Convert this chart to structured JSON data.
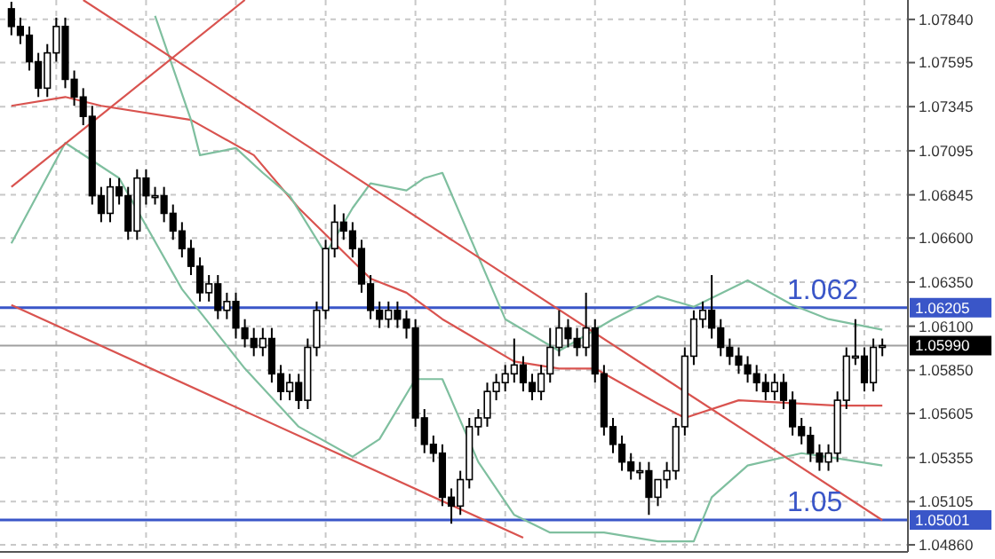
{
  "chart_data": {
    "type": "candlestick",
    "categories": [
      null,
      null,
      null,
      null,
      null,
      null,
      null,
      null,
      null,
      null,
      null,
      null,
      null,
      null,
      null,
      null,
      null,
      null,
      null,
      null,
      null,
      null,
      null,
      null,
      null,
      null,
      null,
      null,
      null,
      null,
      null,
      null,
      null,
      null,
      null,
      null,
      null,
      null,
      null,
      null,
      null,
      null,
      null,
      null,
      null,
      null,
      null,
      null,
      null,
      null,
      null,
      null,
      null,
      null,
      null,
      null,
      null,
      null,
      null,
      null,
      null,
      null,
      null,
      null,
      null,
      null,
      null,
      null,
      null,
      null,
      null,
      null,
      null,
      null,
      null,
      null,
      null,
      null,
      null,
      null,
      null,
      null,
      null,
      null,
      null,
      null,
      null,
      null,
      null,
      null,
      null,
      null,
      null,
      null,
      null,
      null,
      null,
      null
    ],
    "color": "#000000",
    "ohlc": [
      [
        1.079,
        1.0794,
        1.0775,
        1.078
      ],
      [
        1.078,
        1.0785,
        1.077,
        1.0775
      ],
      [
        1.0775,
        1.078,
        1.0755,
        1.076
      ],
      [
        1.076,
        1.0765,
        1.074,
        1.0745
      ],
      [
        1.0745,
        1.077,
        1.074,
        1.0765
      ],
      [
        1.0765,
        1.0785,
        1.076,
        1.078
      ],
      [
        1.078,
        1.0785,
        1.0745,
        1.075
      ],
      [
        1.075,
        1.0755,
        1.0735,
        1.074
      ],
      [
        1.074,
        1.0745,
        1.0724,
        1.0729
      ],
      [
        1.0729,
        1.0735,
        1.0679,
        1.0684
      ],
      [
        1.0684,
        1.0689,
        1.0669,
        1.0674
      ],
      [
        1.0674,
        1.0694,
        1.0669,
        1.0689
      ],
      [
        1.0689,
        1.0694,
        1.0679,
        1.0684
      ],
      [
        1.0684,
        1.0689,
        1.0659,
        1.0664
      ],
      [
        1.0664,
        1.0699,
        1.0659,
        1.0694
      ],
      [
        1.0694,
        1.0699,
        1.0679,
        1.0684
      ],
      [
        1.0684,
        1.0689,
        1.0679,
        1.0684
      ],
      [
        1.0684,
        1.0689,
        1.0669,
        1.0674
      ],
      [
        1.0674,
        1.0679,
        1.0659,
        1.0664
      ],
      [
        1.0664,
        1.0669,
        1.0649,
        1.0654
      ],
      [
        1.0654,
        1.0659,
        1.0639,
        1.0644
      ],
      [
        1.0644,
        1.0649,
        1.0624,
        1.0629
      ],
      [
        1.0629,
        1.0639,
        1.0624,
        1.0634
      ],
      [
        1.0634,
        1.0639,
        1.0614,
        1.0619
      ],
      [
        1.0619,
        1.0629,
        1.0614,
        1.0624
      ],
      [
        1.0624,
        1.0629,
        1.0603,
        1.0609
      ],
      [
        1.0609,
        1.0614,
        1.0598,
        1.0603
      ],
      [
        1.0603,
        1.0609,
        1.0593,
        1.0598
      ],
      [
        1.0598,
        1.0609,
        1.0593,
        1.0603
      ],
      [
        1.0603,
        1.0609,
        1.0578,
        1.0583
      ],
      [
        1.0583,
        1.0588,
        1.0568,
        1.0573
      ],
      [
        1.0573,
        1.0583,
        1.0568,
        1.0578
      ],
      [
        1.0578,
        1.0583,
        1.0563,
        1.0568
      ],
      [
        1.0568,
        1.0603,
        1.0563,
        1.0598
      ],
      [
        1.0598,
        1.0624,
        1.0593,
        1.0619
      ],
      [
        1.0619,
        1.0659,
        1.0614,
        1.0654
      ],
      [
        1.0654,
        1.0679,
        1.0649,
        1.0669
      ],
      [
        1.0669,
        1.0674,
        1.0659,
        1.0664
      ],
      [
        1.0664,
        1.0669,
        1.0649,
        1.0654
      ],
      [
        1.0654,
        1.0659,
        1.0629,
        1.0634
      ],
      [
        1.0634,
        1.0639,
        1.0614,
        1.0619
      ],
      [
        1.0619,
        1.0624,
        1.0609,
        1.0614
      ],
      [
        1.0614,
        1.0624,
        1.0609,
        1.0619
      ],
      [
        1.0619,
        1.0624,
        1.0609,
        1.0614
      ],
      [
        1.0614,
        1.0619,
        1.0603,
        1.0609
      ],
      [
        1.0609,
        1.0614,
        1.0553,
        1.0558
      ],
      [
        1.0558,
        1.0563,
        1.0538,
        1.0543
      ],
      [
        1.0543,
        1.0548,
        1.0533,
        1.0538
      ],
      [
        1.0538,
        1.0543,
        1.0508,
        1.0513
      ],
      [
        1.0513,
        1.0518,
        1.0498,
        1.0508
      ],
      [
        1.0508,
        1.0528,
        1.0503,
        1.0523
      ],
      [
        1.0523,
        1.0558,
        1.0518,
        1.0553
      ],
      [
        1.0553,
        1.0563,
        1.0548,
        1.0558
      ],
      [
        1.0558,
        1.0578,
        1.0553,
        1.0573
      ],
      [
        1.0573,
        1.0583,
        1.0568,
        1.0578
      ],
      [
        1.0578,
        1.0588,
        1.0573,
        1.0583
      ],
      [
        1.0583,
        1.0603,
        1.0578,
        1.0588
      ],
      [
        1.0588,
        1.0593,
        1.0573,
        1.0578
      ],
      [
        1.0578,
        1.0583,
        1.0568,
        1.0573
      ],
      [
        1.0573,
        1.0588,
        1.0568,
        1.0583
      ],
      [
        1.0583,
        1.0609,
        1.0578,
        1.0598
      ],
      [
        1.0598,
        1.0619,
        1.0593,
        1.0609
      ],
      [
        1.0609,
        1.0614,
        1.0598,
        1.0603
      ],
      [
        1.0603,
        1.0609,
        1.0593,
        1.0598
      ],
      [
        1.0598,
        1.0629,
        1.0593,
        1.0609
      ],
      [
        1.0609,
        1.0614,
        1.0578,
        1.0583
      ],
      [
        1.0583,
        1.0588,
        1.0548,
        1.0553
      ],
      [
        1.0553,
        1.0558,
        1.0538,
        1.0543
      ],
      [
        1.0543,
        1.0548,
        1.0528,
        1.0533
      ],
      [
        1.0533,
        1.0538,
        1.0523,
        1.0528
      ],
      [
        1.0528,
        1.0533,
        1.0523,
        1.0528
      ],
      [
        1.0528,
        1.0533,
        1.0503,
        1.0513
      ],
      [
        1.0513,
        1.0523,
        1.0508,
        1.0523
      ],
      [
        1.0523,
        1.0533,
        1.0518,
        1.0528
      ],
      [
        1.0528,
        1.0558,
        1.0523,
        1.0553
      ],
      [
        1.0553,
        1.0598,
        1.0548,
        1.0593
      ],
      [
        1.0593,
        1.0619,
        1.0588,
        1.0614
      ],
      [
        1.0614,
        1.0624,
        1.0609,
        1.0619
      ],
      [
        1.0619,
        1.0639,
        1.0603,
        1.0609
      ],
      [
        1.0609,
        1.0614,
        1.0593,
        1.0598
      ],
      [
        1.0598,
        1.0603,
        1.0588,
        1.0593
      ],
      [
        1.0593,
        1.0598,
        1.0583,
        1.0588
      ],
      [
        1.0588,
        1.0593,
        1.0578,
        1.0583
      ],
      [
        1.0583,
        1.0588,
        1.0573,
        1.0578
      ],
      [
        1.0578,
        1.0583,
        1.0568,
        1.0573
      ],
      [
        1.0573,
        1.0583,
        1.0568,
        1.0578
      ],
      [
        1.0578,
        1.0583,
        1.0563,
        1.0568
      ],
      [
        1.0568,
        1.0573,
        1.0548,
        1.0553
      ],
      [
        1.0553,
        1.0558,
        1.0543,
        1.0548
      ],
      [
        1.0548,
        1.0553,
        1.0533,
        1.0538
      ],
      [
        1.0538,
        1.0543,
        1.0528,
        1.0533
      ],
      [
        1.0533,
        1.0543,
        1.0528,
        1.0538
      ],
      [
        1.0538,
        1.0573,
        1.0533,
        1.0568
      ],
      [
        1.0568,
        1.0598,
        1.0563,
        1.0593
      ],
      [
        1.0593,
        1.0614,
        1.0588,
        1.0593
      ],
      [
        1.0593,
        1.0598,
        1.0573,
        1.0578
      ],
      [
        1.0578,
        1.0603,
        1.0573,
        1.0598
      ],
      [
        1.0598,
        1.0603,
        1.0593,
        1.0599
      ]
    ],
    "series": [
      {
        "type": "line",
        "color": "#d9534f",
        "values": [
          1.0735,
          null,
          null,
          null,
          null,
          null,
          1.074,
          null,
          null,
          null,
          1.0735,
          null,
          null,
          null,
          null,
          null,
          null,
          null,
          null,
          null,
          1.0727,
          null,
          null,
          null,
          null,
          null,
          null,
          1.0707,
          null,
          null,
          null,
          null,
          1.0677,
          null,
          null,
          null,
          null,
          null,
          null,
          null,
          1.0637,
          null,
          null,
          null,
          1.0629,
          null,
          null,
          null,
          1.0614,
          null,
          null,
          null,
          null,
          null,
          null,
          null,
          1.059,
          null,
          null,
          null,
          null,
          1.0586,
          null,
          null,
          null,
          1.0586,
          null,
          null,
          null,
          null,
          null,
          null,
          1.0566,
          null,
          null,
          1.0558,
          null,
          null,
          null,
          null,
          null,
          1.0568,
          null,
          null,
          null,
          null,
          null,
          null,
          null,
          null,
          null,
          null,
          1.0565,
          null,
          null,
          null,
          null,
          1.0565
        ]
      },
      {
        "type": "line",
        "color": "#7fbf9f",
        "values": [
          null,
          null,
          null,
          null,
          null,
          null,
          null,
          null,
          null,
          null,
          null,
          null,
          null,
          null,
          null,
          null,
          1.0786,
          null,
          null,
          null,
          1.0727,
          1.0707,
          null,
          null,
          null,
          1.0711,
          null,
          null,
          1.0697,
          null,
          null,
          1.0684,
          null,
          null,
          null,
          1.0651,
          null,
          null,
          1.0677,
          null,
          1.0691,
          null,
          null,
          null,
          1.0687,
          null,
          1.0694,
          null,
          1.0697,
          null,
          null,
          null,
          null,
          null,
          null,
          1.0614,
          null,
          null,
          null,
          null,
          null,
          1.0596,
          null,
          null,
          null,
          null,
          null,
          1.0614,
          null,
          null,
          null,
          null,
          1.0627,
          null,
          null,
          null,
          1.0621,
          null,
          null,
          null,
          null,
          null,
          1.0636,
          null,
          null,
          null,
          null,
          1.0622,
          null,
          null,
          null,
          1.0614,
          null,
          null,
          null,
          null,
          null,
          1.0608
        ]
      },
      {
        "type": "line",
        "color": "#7fbf9f",
        "values": [
          1.0657,
          null,
          null,
          null,
          null,
          null,
          1.0714,
          null,
          null,
          null,
          null,
          null,
          1.0694,
          null,
          null,
          null,
          null,
          null,
          null,
          1.0631,
          null,
          null,
          null,
          null,
          null,
          null,
          1.0586,
          null,
          null,
          null,
          null,
          null,
          1.0553,
          null,
          null,
          null,
          null,
          null,
          1.0536,
          null,
          null,
          1.0546,
          null,
          null,
          null,
          1.058,
          null,
          null,
          1.058,
          null,
          null,
          null,
          1.0533,
          null,
          null,
          null,
          1.0503,
          null,
          null,
          null,
          1.0493,
          null,
          null,
          null,
          null,
          null,
          1.0493,
          null,
          null,
          null,
          null,
          null,
          1.0488,
          null,
          null,
          null,
          1.0488,
          null,
          1.0513,
          null,
          null,
          null,
          1.0531,
          null,
          null,
          null,
          null,
          null,
          1.0538,
          null,
          null,
          null,
          1.0535,
          null,
          null,
          null,
          null,
          1.0531
        ]
      },
      {
        "type": "line",
        "color": "#d9534f",
        "values": [
          null,
          null,
          null,
          null,
          null,
          null,
          null,
          null,
          1.0795,
          null,
          null,
          null,
          null,
          null,
          null,
          null,
          null,
          null,
          null,
          null,
          null,
          null,
          null,
          null,
          null,
          null,
          null,
          null,
          null,
          null,
          null,
          null,
          null,
          null,
          null,
          null,
          null,
          null,
          null,
          null,
          null,
          null,
          null,
          null,
          null,
          null,
          null,
          null,
          null,
          null,
          null,
          null,
          null,
          null,
          null,
          null,
          null,
          null,
          null,
          null,
          null,
          null,
          null,
          null,
          null,
          null,
          null,
          null,
          null,
          null,
          null,
          null,
          null,
          null,
          null,
          null,
          null,
          null,
          null,
          null,
          null,
          null,
          null,
          null,
          null,
          null,
          null,
          null,
          null,
          null,
          null,
          null,
          null,
          null,
          null,
          null,
          null,
          1.05
        ]
      },
      {
        "type": "line",
        "color": "#d9534f",
        "values": [
          1.0622,
          null,
          null,
          null,
          null,
          null,
          null,
          null,
          null,
          null,
          null,
          null,
          null,
          null,
          null,
          null,
          null,
          null,
          null,
          null,
          null,
          null,
          null,
          null,
          null,
          null,
          null,
          null,
          null,
          null,
          null,
          null,
          null,
          null,
          null,
          null,
          null,
          null,
          null,
          null,
          null,
          null,
          null,
          null,
          null,
          null,
          null,
          null,
          null,
          null,
          null,
          null,
          null,
          null,
          null,
          null,
          null,
          1.049,
          null,
          null,
          null,
          null,
          null,
          null,
          null,
          null,
          null,
          null,
          null,
          null,
          null,
          null,
          null,
          null,
          null,
          null,
          null,
          null,
          null,
          null,
          null,
          null,
          null,
          null,
          null,
          null,
          null,
          null,
          null,
          null,
          null,
          null,
          null,
          null,
          null,
          null,
          null,
          null
        ]
      },
      {
        "type": "line",
        "color": "#d9534f",
        "values": [
          1.0689,
          null,
          null,
          null,
          null,
          null,
          null,
          null,
          null,
          null,
          null,
          null,
          null,
          null,
          null,
          null,
          null,
          null,
          null,
          null,
          null,
          null,
          null,
          null,
          null,
          null,
          1.0795,
          null,
          null,
          null,
          null,
          null,
          null,
          null,
          null,
          null,
          null,
          null,
          null,
          null,
          null,
          null,
          null,
          null,
          null,
          null,
          null,
          null,
          null,
          null,
          null,
          null,
          null,
          null,
          null,
          null,
          null,
          null,
          null,
          null,
          null,
          null,
          null,
          null,
          null,
          null,
          null,
          null,
          null,
          null,
          null,
          null,
          null,
          null,
          null,
          null,
          null,
          null,
          null,
          null,
          null,
          null,
          null,
          null,
          null,
          null,
          null,
          null,
          null,
          null,
          null,
          null,
          null,
          null,
          null,
          null,
          null,
          null
        ]
      }
    ],
    "ylim": [
      1.0482,
      1.0795
    ],
    "yticks": [
      {
        "value": 1.0784,
        "label": "1.07840"
      },
      1.07595,
      1.07345,
      1.07095,
      1.06845,
      {
        "value": 1.066,
        "label": "1.06600"
      },
      {
        "value": 1.0635,
        "label": "1.06350"
      },
      {
        "value": 1.061,
        "label": "1.06100"
      },
      {
        "value": 1.0585,
        "label": "1.05850"
      },
      1.05605,
      1.05355,
      1.05105,
      {
        "value": 1.0486,
        "label": "1.04860"
      }
    ],
    "ref_lines": [
      {
        "axis": "y",
        "value": 1.06205,
        "label": "1.06205",
        "color": "#3a56c8"
      },
      {
        "axis": "y",
        "value": 1.05001,
        "label": "1.05001",
        "color": "#3a56c8"
      },
      {
        "axis": "y",
        "value": 1.0599,
        "label": "1.05990",
        "color": "#a0a0a0"
      }
    ],
    "annotations": [
      {
        "text": "1.062",
        "y": 1.06205
      },
      {
        "text": "1.05",
        "y": 1.05001
      }
    ],
    "grid": true,
    "line_style": "solid"
  }
}
